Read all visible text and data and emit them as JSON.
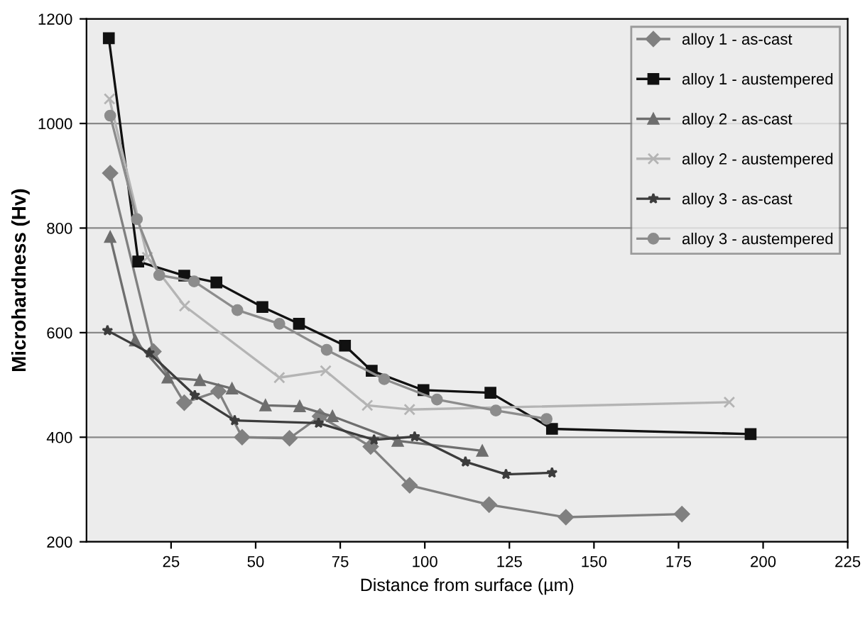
{
  "chart_data": {
    "type": "line",
    "xlabel": "Distance from surface (µm)",
    "ylabel": "Microhardness (Hv)",
    "xlim": [
      0,
      225
    ],
    "xticks": [
      25,
      50,
      75,
      100,
      125,
      150,
      175,
      200,
      225
    ],
    "ylim": [
      200,
      1200
    ],
    "yticks": [
      200,
      400,
      600,
      800,
      1000,
      1200
    ],
    "grid": "y",
    "legend": "top right",
    "series": [
      {
        "name": "alloy 1 - as-cast",
        "color": "#808080",
        "marker": "diamond",
        "x": [
          7,
          19.8,
          28.9,
          39,
          46,
          60,
          69,
          84,
          95.5,
          119,
          141.7,
          176
        ],
        "values": [
          905,
          564,
          466,
          488,
          400,
          398,
          440,
          382,
          308,
          271,
          247,
          253
        ]
      },
      {
        "name": "alloy 1 - austempered",
        "color": "#111111",
        "marker": "square",
        "x": [
          6.6,
          15.3,
          28.9,
          38.4,
          52,
          62.8,
          76.4,
          84.3,
          99.6,
          119.4,
          137.6,
          196.3
        ],
        "values": [
          1163,
          736,
          709,
          696,
          649,
          617,
          575,
          527,
          490,
          485,
          416,
          406
        ]
      },
      {
        "name": "alloy 2 - as-cast",
        "color": "#6e6e6e",
        "marker": "triangle",
        "x": [
          7,
          14.4,
          24,
          33.5,
          43,
          52.9,
          63,
          72.7,
          92,
          117
        ],
        "values": [
          783,
          585,
          514,
          509,
          493,
          461,
          459,
          440,
          393,
          374
        ]
      },
      {
        "name": "alloy 2 - austempered",
        "color": "#b4b4b4",
        "marker": "cross",
        "x": [
          6.8,
          18,
          29,
          57,
          70.7,
          83,
          95.5,
          190
        ],
        "values": [
          1047,
          744,
          651,
          514,
          527,
          461,
          453,
          467
        ]
      },
      {
        "name": "alloy 3 - as-cast",
        "color": "#3c3c3c",
        "marker": "star",
        "x": [
          6.2,
          18.6,
          32,
          43.8,
          68.6,
          85,
          97,
          112,
          124,
          137.6
        ],
        "values": [
          604,
          561,
          480,
          432,
          427,
          395,
          401,
          353,
          329,
          332
        ]
      },
      {
        "name": "alloy 3 - austempered",
        "color": "#8c8c8c",
        "marker": "circle",
        "x": [
          7,
          14.9,
          21.5,
          31.8,
          44.6,
          57,
          71,
          88,
          103.6,
          121,
          136
        ],
        "values": [
          1015,
          817,
          710,
          698,
          643,
          617,
          567,
          511,
          472,
          451,
          435
        ]
      }
    ]
  }
}
